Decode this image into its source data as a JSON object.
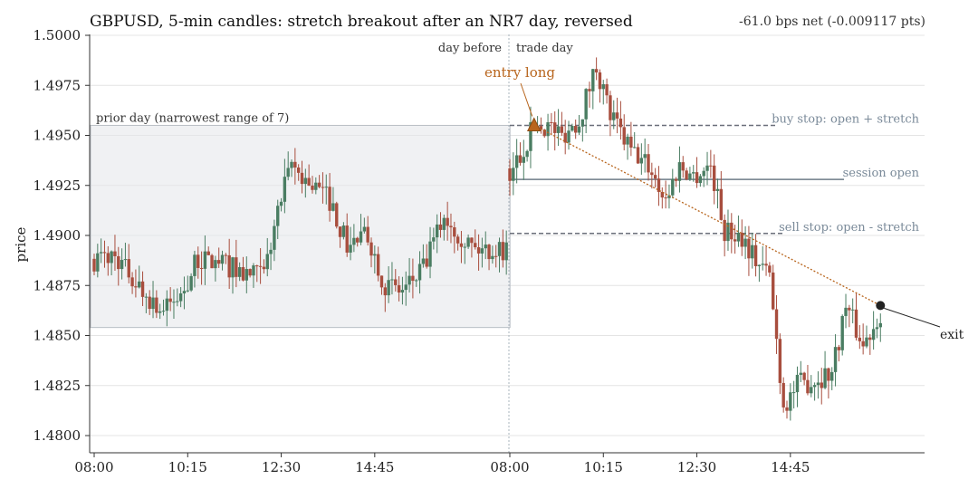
{
  "chart_data": {
    "type": "candlestick",
    "title": "GBPUSD, 5-min candles: stretch breakout after an NR7 day, reversed",
    "subtitle": "-61.0 bps net (-0.009117 pts)",
    "ylabel": "price",
    "ylim": [
      1.479,
      1.501
    ],
    "yticks": [
      "1.4800",
      "1.4825",
      "1.4850",
      "1.4875",
      "1.4900",
      "1.4925",
      "1.4950",
      "1.4975",
      "1.5000"
    ],
    "xticks": [
      {
        "day": 0,
        "time": "08:00"
      },
      {
        "day": 0,
        "time": "10:15"
      },
      {
        "day": 0,
        "time": "12:30"
      },
      {
        "day": 0,
        "time": "14:45"
      },
      {
        "day": 1,
        "time": "08:00"
      },
      {
        "day": 1,
        "time": "10:15"
      },
      {
        "day": 1,
        "time": "12:30"
      },
      {
        "day": 1,
        "time": "14:45"
      }
    ],
    "day_labels": {
      "before": "day before",
      "after": "trade day"
    },
    "prior_day": {
      "label": "prior day (narrowest range of 7)",
      "high": 1.4955,
      "low": 1.4854
    },
    "levels": [
      {
        "name": "buy stop: open + stretch",
        "value": 1.4955,
        "style": "dashed"
      },
      {
        "name": "session open",
        "value": 1.4928,
        "style": "solid"
      },
      {
        "name": "sell stop: open - stretch",
        "value": 1.4901,
        "style": "dashed"
      }
    ],
    "entry": {
      "label": "entry long",
      "time": "08:35",
      "price": 1.4955
    },
    "exit": {
      "label": "exit",
      "time": "16:55",
      "price": 1.4865
    },
    "colors": {
      "up": "#4a7d62",
      "down": "#a84e3e",
      "entry": "#b8651d",
      "exit": "#222222",
      "level": "#7a8a99",
      "shade": "#e6e8eb"
    },
    "anchors": {
      "day0": [
        [
          "08:00",
          1.4888
        ],
        [
          "08:30",
          1.489
        ],
        [
          "09:10",
          1.4872
        ],
        [
          "09:40",
          1.4862
        ],
        [
          "10:05",
          1.487
        ],
        [
          "10:30",
          1.4888
        ],
        [
          "11:15",
          1.4885
        ],
        [
          "11:40",
          1.488
        ],
        [
          "12:05",
          1.488
        ],
        [
          "12:25",
          1.4912
        ],
        [
          "12:45",
          1.4935
        ],
        [
          "13:05",
          1.4928
        ],
        [
          "13:40",
          1.4918
        ],
        [
          "14:05",
          1.4895
        ],
        [
          "14:35",
          1.49
        ],
        [
          "15:00",
          1.4875
        ],
        [
          "15:25",
          1.4872
        ],
        [
          "15:55",
          1.4883
        ],
        [
          "16:25",
          1.491
        ],
        [
          "16:50",
          1.49
        ],
        [
          "17:10",
          1.4893
        ],
        [
          "17:55",
          1.4893
        ]
      ],
      "day1": [
        [
          "08:00",
          1.4932
        ],
        [
          "08:15",
          1.494
        ],
        [
          "08:35",
          1.4955
        ],
        [
          "08:55",
          1.4955
        ],
        [
          "09:15",
          1.495
        ],
        [
          "09:40",
          1.4958
        ],
        [
          "10:05",
          1.4985
        ],
        [
          "10:25",
          1.496
        ],
        [
          "10:55",
          1.4942
        ],
        [
          "11:20",
          1.4935
        ],
        [
          "11:45",
          1.4918
        ],
        [
          "12:05",
          1.4935
        ],
        [
          "12:25",
          1.493
        ],
        [
          "12:50",
          1.4935
        ],
        [
          "13:10",
          1.4902
        ],
        [
          "13:35",
          1.49
        ],
        [
          "13:55",
          1.4888
        ],
        [
          "14:15",
          1.488
        ],
        [
          "14:35",
          1.4815
        ],
        [
          "14:55",
          1.4825
        ],
        [
          "15:20",
          1.4828
        ],
        [
          "15:45",
          1.4832
        ],
        [
          "16:05",
          1.4865
        ],
        [
          "16:30",
          1.4845
        ],
        [
          "16:55",
          1.4862
        ]
      ]
    }
  }
}
